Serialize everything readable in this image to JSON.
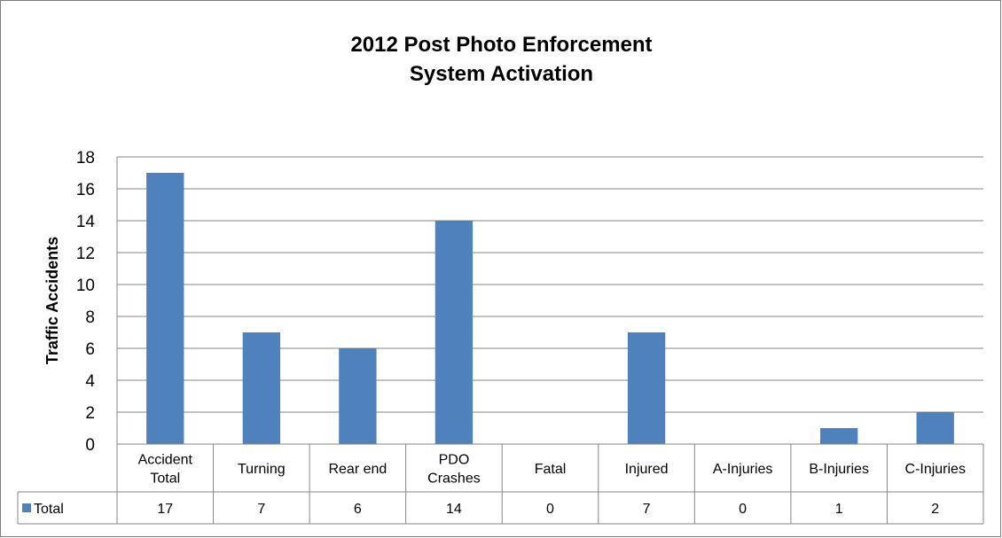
{
  "chart_data": {
    "type": "bar",
    "title_lines": [
      "2012 Post Photo Enforcement",
      "System Activation"
    ],
    "xlabel": "",
    "ylabel": "Traffic Accidents",
    "ylim": [
      0,
      18
    ],
    "yticks": [
      0,
      2,
      4,
      6,
      8,
      10,
      12,
      14,
      16,
      18
    ],
    "grid": true,
    "categories": [
      [
        "Accident",
        "Total"
      ],
      [
        "Turning"
      ],
      [
        "Rear end"
      ],
      [
        "PDO",
        "Crashes"
      ],
      [
        "Fatal"
      ],
      [
        "Injured"
      ],
      [
        "A-Injuries"
      ],
      [
        "B-Injuries"
      ],
      [
        "C-Injuries"
      ]
    ],
    "series": [
      {
        "name": "Total",
        "values": [
          17,
          7,
          6,
          14,
          0,
          7,
          0,
          1,
          2
        ],
        "color": "#4f81bd"
      }
    ],
    "data_table": true
  }
}
